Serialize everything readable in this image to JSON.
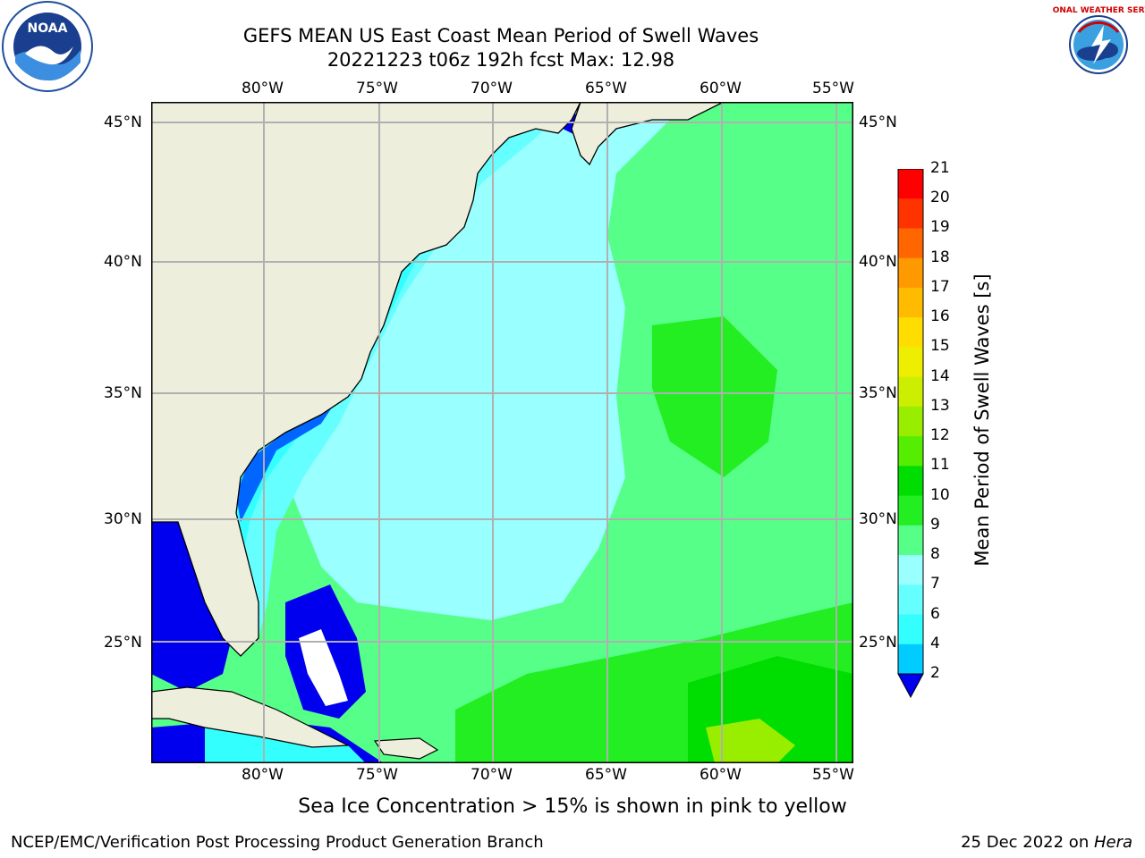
{
  "title": {
    "line1": "GEFS MEAN US East Coast Mean Period of Swell Waves",
    "line2": "20221223 t06z 192h fcst   Max: 12.98"
  },
  "logos": {
    "left": {
      "icon": "noaa-logo-icon",
      "text": "NOAA"
    },
    "right": {
      "icon": "nws-logo-icon",
      "text": "NATIONAL WEATHER SERVICE"
    }
  },
  "map": {
    "lon_labels": [
      "80°W",
      "75°W",
      "70°W",
      "65°W",
      "60°W",
      "55°W"
    ],
    "lat_labels": [
      "45°N",
      "40°N",
      "35°N",
      "30°N",
      "25°N"
    ],
    "colors": {
      "land": "#eeeedd",
      "coast": "#000000",
      "grid": "#b0b0b0"
    }
  },
  "colorbar": {
    "label": "Mean Period of Swell Waves [s]",
    "ticks": [
      "2",
      "4",
      "6",
      "7",
      "8",
      "9",
      "10",
      "11",
      "12",
      "13",
      "14",
      "15",
      "16",
      "17",
      "18",
      "19",
      "20",
      "21"
    ],
    "colors": [
      "#0066ff",
      "#00ccff",
      "#33ffff",
      "#66ffff",
      "#99ffff",
      "#55ff88",
      "#22ee22",
      "#00dd00",
      "#55ee00",
      "#99ee00",
      "#ccee00",
      "#eeee00",
      "#ffdd00",
      "#ffbb00",
      "#ff9900",
      "#ff6600",
      "#ff3300",
      "#ff0000"
    ],
    "under_color": "#0000ee"
  },
  "note": "Sea Ice Concentration > 15% is shown in pink to yellow",
  "footer": {
    "left": "NCEP/EMC/Verification Post Processing Product Generation Branch",
    "right_prefix": "25 Dec 2022 on ",
    "right_host": "Hera"
  }
}
